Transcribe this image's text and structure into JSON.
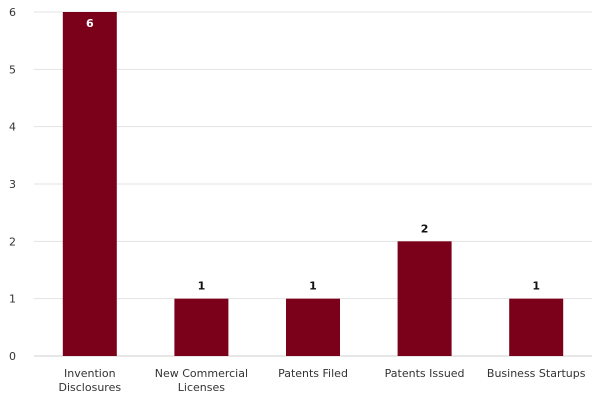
{
  "chart_data": {
    "type": "bar",
    "categories": [
      [
        "Invention",
        "Disclosures"
      ],
      [
        "New Commercial",
        "Licenses"
      ],
      [
        "Patents Filed"
      ],
      [
        "Patents Issued"
      ],
      [
        "Business Startups"
      ]
    ],
    "values": [
      6,
      1,
      1,
      2,
      1
    ],
    "data_labels": [
      "6",
      "1",
      "1",
      "2",
      "1"
    ],
    "title": "",
    "xlabel": "",
    "ylabel": "",
    "ylim": [
      0,
      6
    ],
    "yticks": [
      "0",
      "1",
      "2",
      "3",
      "4",
      "5",
      "6"
    ],
    "grid": true,
    "legend": "none",
    "colors": {
      "bar": "#7b0019",
      "label_on_bar": "#ffffff",
      "label_above": "#111111"
    }
  }
}
